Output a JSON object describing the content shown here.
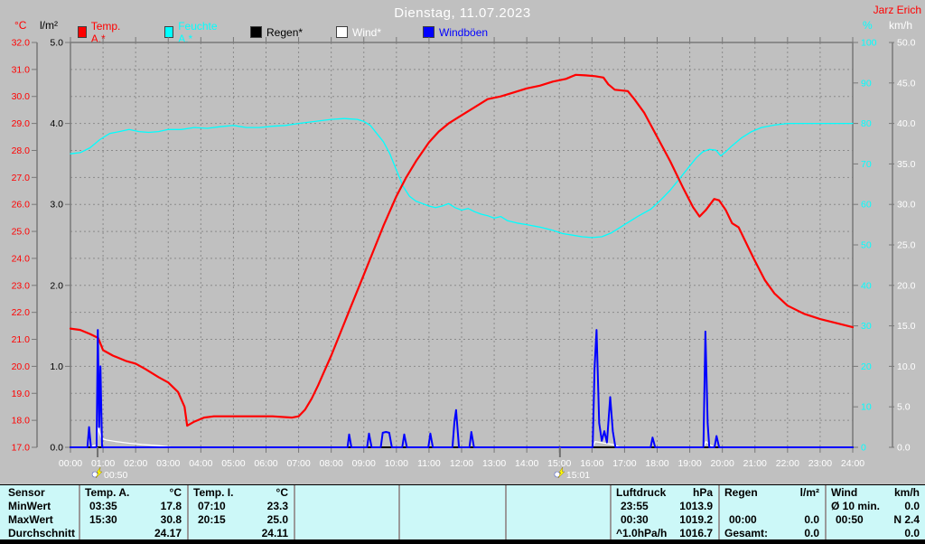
{
  "header": {
    "title": "Dienstag, 11.07.2023",
    "station": "Jarz Erich",
    "axis_titles": {
      "left_temp": "°C",
      "left_rain": "l/m²",
      "right_humidity": "%",
      "right_wind": "km/h"
    }
  },
  "legend": [
    {
      "label": "Temp. A.*",
      "color": "#ff0000"
    },
    {
      "label": "Feuchte A.*",
      "color": "#00ffff"
    },
    {
      "label": "Regen*",
      "color": "#000000"
    },
    {
      "label": "Wind*",
      "color": "#ffffff"
    },
    {
      "label": "Windböen",
      "color": "#0000ff"
    }
  ],
  "chart_data": {
    "type": "line",
    "title": "Dienstag, 11.07.2023",
    "grid": true,
    "x_axis": {
      "start": 0,
      "end": 24,
      "tick_interval_hours": 1,
      "labels": [
        "00:00",
        "01:00",
        "02:00",
        "03:00",
        "04:00",
        "05:00",
        "06:00",
        "07:00",
        "08:00",
        "09:00",
        "10:00",
        "11:00",
        "12:00",
        "13:00",
        "14:00",
        "15:00",
        "16:00",
        "17:00",
        "18:00",
        "19:00",
        "20:00",
        "21:00",
        "22:00",
        "23:00",
        "24:00"
      ]
    },
    "axes": {
      "temp_c": {
        "label": "°C",
        "color": "#ff0000",
        "min": 17,
        "max": 32,
        "tick_step": 1,
        "decimals": 1
      },
      "rain_lm2": {
        "label": "l/m²",
        "color": "#000000",
        "min": 0,
        "max": 5,
        "tick_step": 1,
        "decimals": 1
      },
      "humidity_pct": {
        "label": "%",
        "color": "#00ffff",
        "min": 0,
        "max": 100,
        "tick_step": 10,
        "decimals": 0
      },
      "wind_kmh": {
        "label": "km/h",
        "color": "#ffffff",
        "min": 0,
        "max": 50,
        "tick_step": 5,
        "decimals": 1
      }
    },
    "series": [
      {
        "name": "Feuchte A.*",
        "axis": "humidity_pct",
        "color": "#00ffff",
        "width": 1.3,
        "points": [
          [
            0,
            72.5
          ],
          [
            0.3,
            72.8
          ],
          [
            0.6,
            74
          ],
          [
            0.9,
            76
          ],
          [
            1.2,
            77.5
          ],
          [
            1.5,
            78
          ],
          [
            1.8,
            78.5
          ],
          [
            2.1,
            78
          ],
          [
            2.4,
            77.8
          ],
          [
            2.7,
            78
          ],
          [
            3,
            78.5
          ],
          [
            3.4,
            78.5
          ],
          [
            3.8,
            79
          ],
          [
            4.2,
            78.8
          ],
          [
            4.6,
            79.2
          ],
          [
            5,
            79.5
          ],
          [
            5.4,
            79
          ],
          [
            5.8,
            79
          ],
          [
            6.2,
            79.3
          ],
          [
            6.6,
            79.5
          ],
          [
            7,
            80
          ],
          [
            7.5,
            80.5
          ],
          [
            8,
            81
          ],
          [
            8.4,
            81.2
          ],
          [
            8.8,
            81
          ],
          [
            9,
            80.5
          ],
          [
            9.2,
            79.5
          ],
          [
            9.4,
            77.5
          ],
          [
            9.6,
            75.5
          ],
          [
            9.8,
            72.5
          ],
          [
            10,
            68.5
          ],
          [
            10.2,
            64.5
          ],
          [
            10.4,
            62
          ],
          [
            10.6,
            60.8
          ],
          [
            10.8,
            60.2
          ],
          [
            11,
            59.6
          ],
          [
            11.2,
            59.2
          ],
          [
            11.4,
            59.6
          ],
          [
            11.6,
            60.2
          ],
          [
            11.8,
            59.2
          ],
          [
            12,
            58.6
          ],
          [
            12.2,
            59
          ],
          [
            12.4,
            58.2
          ],
          [
            12.6,
            57.6
          ],
          [
            12.8,
            57.2
          ],
          [
            13,
            56.6
          ],
          [
            13.2,
            57
          ],
          [
            13.4,
            56
          ],
          [
            13.7,
            55.4
          ],
          [
            14,
            55
          ],
          [
            14.4,
            54.4
          ],
          [
            14.8,
            53.6
          ],
          [
            15.1,
            52.8
          ],
          [
            15.4,
            52.4
          ],
          [
            15.7,
            52
          ],
          [
            16,
            51.8
          ],
          [
            16.3,
            52
          ],
          [
            16.6,
            53
          ],
          [
            17,
            55
          ],
          [
            17.4,
            57
          ],
          [
            17.8,
            58.8
          ],
          [
            18.1,
            61
          ],
          [
            18.4,
            63.5
          ],
          [
            18.7,
            66.5
          ],
          [
            19,
            69.5
          ],
          [
            19.2,
            71.5
          ],
          [
            19.4,
            73
          ],
          [
            19.6,
            73.6
          ],
          [
            19.8,
            73.4
          ],
          [
            19.95,
            72
          ],
          [
            20.1,
            73
          ],
          [
            20.3,
            74.5
          ],
          [
            20.6,
            76.5
          ],
          [
            20.9,
            78
          ],
          [
            21.2,
            79
          ],
          [
            21.6,
            79.6
          ],
          [
            22,
            80
          ],
          [
            22.5,
            80
          ],
          [
            23,
            80
          ],
          [
            23.5,
            80
          ],
          [
            24,
            80
          ]
        ]
      },
      {
        "name": "Wind*",
        "axis": "wind_kmh",
        "color": "#ffffff",
        "width": 1.3,
        "points": [
          [
            0,
            0
          ],
          [
            0.55,
            0
          ],
          [
            0.8,
            0.3
          ],
          [
            0.85,
            2.4
          ],
          [
            0.95,
            1.1
          ],
          [
            1.1,
            0.9
          ],
          [
            1.4,
            0.7
          ],
          [
            1.8,
            0.5
          ],
          [
            2.2,
            0.35
          ],
          [
            2.7,
            0.2
          ],
          [
            3.2,
            0
          ],
          [
            16.02,
            0
          ],
          [
            16.1,
            0.7
          ],
          [
            16.4,
            0.5
          ],
          [
            16.7,
            0.3
          ],
          [
            16.85,
            0
          ],
          [
            19.42,
            0
          ],
          [
            19.5,
            0.7
          ],
          [
            19.62,
            0.3
          ],
          [
            19.75,
            0
          ],
          [
            24,
            0
          ]
        ]
      },
      {
        "name": "Regen*",
        "axis": "rain_lm2",
        "color": "#000000",
        "width": 2,
        "points": [
          [
            0,
            0
          ],
          [
            24,
            0
          ]
        ]
      },
      {
        "name": "Temp. A.*",
        "axis": "temp_c",
        "color": "#ff0000",
        "width": 2.2,
        "points": [
          [
            0,
            21.4
          ],
          [
            0.3,
            21.35
          ],
          [
            0.6,
            21.2
          ],
          [
            0.85,
            21.05
          ],
          [
            1,
            20.6
          ],
          [
            1.3,
            20.4
          ],
          [
            1.7,
            20.2
          ],
          [
            2,
            20.1
          ],
          [
            2.3,
            19.9
          ],
          [
            2.7,
            19.6
          ],
          [
            3,
            19.4
          ],
          [
            3.3,
            19.05
          ],
          [
            3.5,
            18.5
          ],
          [
            3.58,
            17.8
          ],
          [
            3.8,
            17.95
          ],
          [
            4.1,
            18.1
          ],
          [
            4.4,
            18.15
          ],
          [
            5,
            18.15
          ],
          [
            5.6,
            18.15
          ],
          [
            6.2,
            18.15
          ],
          [
            6.8,
            18.1
          ],
          [
            7,
            18.15
          ],
          [
            7.2,
            18.4
          ],
          [
            7.4,
            18.8
          ],
          [
            7.6,
            19.3
          ],
          [
            7.8,
            19.85
          ],
          [
            8,
            20.4
          ],
          [
            8.3,
            21.3
          ],
          [
            8.6,
            22.2
          ],
          [
            9,
            23.4
          ],
          [
            9.3,
            24.3
          ],
          [
            9.6,
            25.2
          ],
          [
            10,
            26.3
          ],
          [
            10.3,
            27.0
          ],
          [
            10.6,
            27.6
          ],
          [
            11,
            28.3
          ],
          [
            11.3,
            28.7
          ],
          [
            11.6,
            29.0
          ],
          [
            12,
            29.3
          ],
          [
            12.4,
            29.6
          ],
          [
            12.8,
            29.9
          ],
          [
            13.2,
            30.0
          ],
          [
            13.6,
            30.15
          ],
          [
            14,
            30.3
          ],
          [
            14.4,
            30.4
          ],
          [
            14.8,
            30.55
          ],
          [
            15.2,
            30.65
          ],
          [
            15.5,
            30.8
          ],
          [
            15.8,
            30.78
          ],
          [
            16.1,
            30.75
          ],
          [
            16.35,
            30.7
          ],
          [
            16.5,
            30.45
          ],
          [
            16.7,
            30.25
          ],
          [
            17.1,
            30.2
          ],
          [
            17.3,
            29.9
          ],
          [
            17.6,
            29.4
          ],
          [
            18,
            28.5
          ],
          [
            18.4,
            27.6
          ],
          [
            18.8,
            26.6
          ],
          [
            19.1,
            25.9
          ],
          [
            19.3,
            25.55
          ],
          [
            19.5,
            25.8
          ],
          [
            19.75,
            26.2
          ],
          [
            19.9,
            26.15
          ],
          [
            20.1,
            25.8
          ],
          [
            20.3,
            25.3
          ],
          [
            20.5,
            25.15
          ],
          [
            20.8,
            24.4
          ],
          [
            21,
            23.9
          ],
          [
            21.3,
            23.2
          ],
          [
            21.6,
            22.7
          ],
          [
            22,
            22.25
          ],
          [
            22.5,
            21.95
          ],
          [
            23,
            21.75
          ],
          [
            23.5,
            21.6
          ],
          [
            24,
            21.45
          ]
        ]
      },
      {
        "name": "Windböen",
        "axis": "wind_kmh",
        "color": "#0000ff",
        "width": 2,
        "points": [
          [
            0,
            0
          ],
          [
            0.52,
            0
          ],
          [
            0.57,
            2.5
          ],
          [
            0.63,
            0
          ],
          [
            0.8,
            0
          ],
          [
            0.84,
            14.5
          ],
          [
            0.88,
            2.5
          ],
          [
            0.92,
            10
          ],
          [
            0.97,
            0
          ],
          [
            8.5,
            0
          ],
          [
            8.55,
            1.6
          ],
          [
            8.62,
            0
          ],
          [
            9.1,
            0
          ],
          [
            9.16,
            1.7
          ],
          [
            9.24,
            0
          ],
          [
            9.52,
            0
          ],
          [
            9.58,
            1.8
          ],
          [
            9.68,
            1.9
          ],
          [
            9.78,
            1.8
          ],
          [
            9.86,
            0
          ],
          [
            10.18,
            0
          ],
          [
            10.24,
            1.6
          ],
          [
            10.32,
            0
          ],
          [
            10.98,
            0
          ],
          [
            11.04,
            1.7
          ],
          [
            11.12,
            0
          ],
          [
            11.72,
            0
          ],
          [
            11.78,
            3.2
          ],
          [
            11.83,
            4.6
          ],
          [
            11.92,
            0
          ],
          [
            12.24,
            0
          ],
          [
            12.3,
            1.9
          ],
          [
            12.38,
            0
          ],
          [
            16.02,
            0
          ],
          [
            16.08,
            9.8
          ],
          [
            16.14,
            14.5
          ],
          [
            16.22,
            3
          ],
          [
            16.3,
            0.8
          ],
          [
            16.38,
            2
          ],
          [
            16.46,
            0.6
          ],
          [
            16.56,
            6.2
          ],
          [
            16.64,
            2
          ],
          [
            16.72,
            0
          ],
          [
            17.8,
            0
          ],
          [
            17.86,
            1.2
          ],
          [
            17.94,
            0
          ],
          [
            19.42,
            0
          ],
          [
            19.48,
            14.3
          ],
          [
            19.55,
            3
          ],
          [
            19.6,
            0
          ],
          [
            19.76,
            0
          ],
          [
            19.82,
            1.4
          ],
          [
            19.9,
            0
          ],
          [
            24,
            0
          ]
        ]
      }
    ],
    "markers": [
      {
        "label": "00:50",
        "t": 0.833
      },
      {
        "label": "15:01",
        "t": 15.017
      }
    ]
  },
  "info_table": {
    "row_labels": [
      "Sensor",
      "MinWert",
      "MaxWert",
      "Durchschnitt"
    ],
    "columns": [
      {
        "name": "Temp. A.",
        "unit": "°C",
        "rows": [
          [
            "03:35",
            "17.8"
          ],
          [
            "15:30",
            "30.8"
          ],
          [
            "",
            "24.17"
          ]
        ]
      },
      {
        "name": "Temp. I.",
        "unit": "°C",
        "rows": [
          [
            "07:10",
            "23.3"
          ],
          [
            "20:15",
            "25.0"
          ],
          [
            "",
            "24.11"
          ]
        ]
      },
      {
        "name": "",
        "unit": "",
        "rows": [
          [
            "",
            ""
          ],
          [
            "",
            ""
          ],
          [
            "",
            ""
          ]
        ]
      },
      {
        "name": "",
        "unit": "",
        "rows": [
          [
            "",
            ""
          ],
          [
            "",
            ""
          ],
          [
            "",
            ""
          ]
        ]
      },
      {
        "name": "",
        "unit": "",
        "rows": [
          [
            "",
            ""
          ],
          [
            "",
            ""
          ],
          [
            "",
            ""
          ]
        ]
      },
      {
        "name": "Luftdruck",
        "unit": "hPa",
        "rows": [
          [
            "23:55",
            "1013.9"
          ],
          [
            "00:30",
            "1019.2"
          ],
          [
            "^1.0hPa/h",
            "1016.7"
          ]
        ]
      },
      {
        "name": "Regen",
        "unit": "l/m²",
        "rows": [
          [
            "",
            ""
          ],
          [
            "00:00",
            "0.0"
          ],
          [
            "Gesamt:",
            "0.0"
          ]
        ]
      },
      {
        "name": "Wind",
        "unit": "km/h",
        "rows": [
          [
            "Ø 10 min.",
            "0.0"
          ],
          [
            "00:50",
            "N 2.4"
          ],
          [
            "",
            "0.0"
          ]
        ]
      }
    ]
  },
  "colors": {
    "background": "#c0c0c0",
    "grid": "#8a8a8a",
    "border": "#787878",
    "table_bg": "#ccf8f8",
    "marker_yellow": "#ffff00"
  }
}
